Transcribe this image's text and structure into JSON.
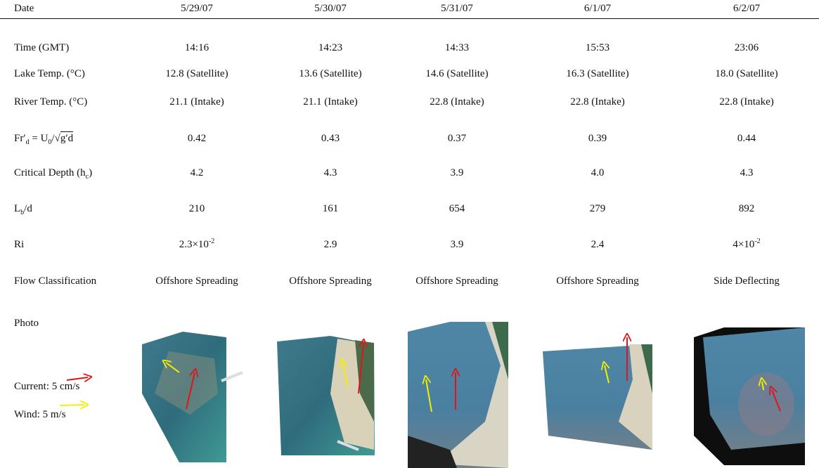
{
  "table": {
    "header": [
      "Date",
      "5/29/07",
      "5/30/07",
      "5/31/07",
      "6/1/07",
      "6/2/07"
    ],
    "rows": [
      [
        "Time (GMT)",
        "14:16",
        "14:23",
        "14:33",
        "15:53",
        "23:06"
      ],
      [
        "Lake Temp. (°C)",
        "12.8 (Satellite)",
        "13.6 (Satellite)",
        "14.6 (Satellite)",
        "16.3 (Satellite)",
        "18.0 (Satellite)"
      ],
      [
        "River Temp. (°C)",
        "21.1 (Intake)",
        "21.1 (Intake)",
        "22.8 (Intake)",
        "22.8 (Intake)",
        "22.8 (Intake)"
      ],
      [
        [
          {
            "text": "Fr′"
          },
          {
            "sub": "d"
          },
          {
            "text": " = U"
          },
          {
            "sub": "0"
          },
          {
            "text": "/"
          },
          {
            "text": "√"
          },
          {
            "over": "g′d"
          }
        ],
        "0.42",
        "0.43",
        "0.37",
        "0.39",
        "0.44"
      ],
      [
        [
          {
            "text": "Critical Depth (h"
          },
          {
            "sub": "c"
          },
          {
            "text": ")"
          }
        ],
        "4.2",
        "4.3",
        "3.9",
        "4.0",
        "4.3"
      ],
      [
        [
          {
            "text": "L"
          },
          {
            "sub": "b"
          },
          {
            "text": "/d"
          }
        ],
        "210",
        "161",
        "654",
        "279",
        "892"
      ],
      [
        "Ri",
        [
          {
            "text": "2.3×10"
          },
          {
            "sup": "-2"
          }
        ],
        "2.9",
        "3.9",
        "2.4",
        [
          {
            "text": "4×10"
          },
          {
            "sup": "-2"
          }
        ]
      ],
      [
        "Flow Classification",
        "Offshore Spreading",
        "Offshore Spreading",
        "Offshore Spreading",
        "Offshore Spreading",
        "Side Deflecting"
      ],
      [
        "Photo"
      ]
    ],
    "legend": {
      "current": "Current: 5 cm/s",
      "wind": "Wind: 5 m/s"
    }
  }
}
